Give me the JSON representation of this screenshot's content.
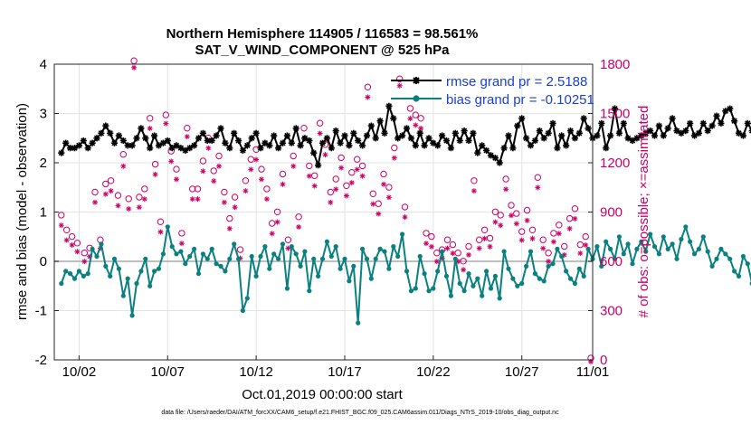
{
  "chart_data": {
    "type": "line",
    "title": "Northern Hemisphere 114905 / 116583 = 98.561%",
    "subtitle": "SAT_V_WIND_COMPONENT @ 525 hPa",
    "xlabel": "Oct.01,2019 00:00:00 start",
    "ylabel_left": "rmse and bias (model - observation)",
    "ylabel_right": "# of obs: o=possible; ×=assimilated",
    "footer": "data file: /Users/raeder/DAI/ATM_forcXX/CAM6_setup/f.e21.FHIST_BGC.f09_025.CAM6assim.011/Diags_NTrS_2019-10/obs_diag_output.nc",
    "xlim": [
      0.6,
      31.0
    ],
    "ylim_left": [
      -2,
      4
    ],
    "ylim_right": [
      0,
      1800
    ],
    "x_ticks": [
      {
        "x": 2,
        "label": "10/02"
      },
      {
        "x": 7,
        "label": "10/07"
      },
      {
        "x": 12,
        "label": "10/12"
      },
      {
        "x": 17,
        "label": "10/17"
      },
      {
        "x": 22,
        "label": "10/22"
      },
      {
        "x": 27,
        "label": "10/27"
      },
      {
        "x": 31,
        "label": "11/01"
      }
    ],
    "y_ticks_left": [
      "-2",
      "-1",
      "0",
      "1",
      "2",
      "3",
      "4"
    ],
    "y_ticks_right": [
      "0",
      "300",
      "600",
      "900",
      "1200",
      "1500",
      "1800"
    ],
    "grid": true,
    "zero_line": true,
    "legend_position": "top-right",
    "colors": {
      "rmse": "#000000",
      "bias": "#0b8080",
      "obs": "#cc0066",
      "zero": "#bfbfbf",
      "legend_text": "#1a3fd6"
    },
    "series": [
      {
        "name": "rmse grand pr = 2.5188",
        "type": "line",
        "marker": "star",
        "x_start": 1.0,
        "x_step": 0.25,
        "values": [
          2.2,
          2.4,
          2.3,
          2.3,
          2.35,
          2.45,
          2.3,
          2.4,
          2.5,
          2.6,
          2.75,
          2.6,
          2.4,
          2.55,
          2.45,
          2.35,
          2.35,
          2.5,
          2.7,
          2.5,
          2.3,
          2.55,
          2.35,
          2.4,
          2.45,
          2.3,
          2.35,
          2.3,
          2.25,
          2.3,
          2.35,
          2.5,
          2.6,
          2.45,
          2.45,
          2.55,
          2.7,
          2.4,
          2.3,
          2.6,
          2.45,
          2.25,
          2.35,
          2.5,
          2.6,
          2.3,
          2.4,
          2.35,
          2.55,
          2.3,
          2.4,
          2.55,
          2.4,
          2.7,
          2.35,
          2.5,
          2.45,
          2.2,
          1.95,
          2.4,
          2.5,
          2.3,
          2.65,
          2.4,
          2.55,
          2.35,
          2.6,
          2.45,
          2.35,
          2.55,
          2.75,
          2.5,
          2.85,
          2.6,
          3.15,
          2.9,
          2.5,
          2.55,
          2.7,
          2.5,
          2.35,
          2.6,
          2.35,
          2.5,
          2.4,
          2.35,
          2.55,
          2.45,
          2.3,
          2.6,
          2.45,
          2.65,
          2.45,
          2.6,
          2.2,
          2.35,
          2.25,
          2.15,
          2.1,
          2.0,
          2.3,
          2.55,
          2.3,
          2.75,
          2.9,
          2.5,
          2.35,
          2.45,
          2.65,
          2.5,
          2.6,
          2.8,
          2.3,
          2.55,
          2.35,
          2.65,
          2.5,
          2.6,
          2.9,
          2.7,
          2.5,
          2.55,
          2.8,
          2.3,
          2.55,
          3.1,
          2.6,
          2.8,
          2.5,
          2.45,
          2.5,
          2.55,
          2.6,
          2.65,
          2.55,
          2.75,
          2.55,
          2.7,
          2.9,
          2.65,
          2.6,
          2.65,
          2.8,
          2.55,
          2.6,
          2.8,
          2.65,
          2.75,
          2.95,
          2.8,
          3.05,
          3.1,
          2.85,
          2.6,
          2.55,
          2.8,
          2.65,
          2.75,
          2.5,
          2.65,
          2.6,
          2.75,
          2.6,
          2.55,
          2.65,
          2.4,
          2.7,
          2.6,
          2.55,
          2.7,
          2.6,
          2.5,
          2.6,
          2.65,
          2.6
        ]
      },
      {
        "name": "bias grand pr = -0.10251",
        "type": "line",
        "marker": "circle",
        "x_start": 1.0,
        "x_step": 0.25,
        "values": [
          -0.45,
          -0.2,
          -0.25,
          -0.35,
          -0.2,
          -0.3,
          -0.25,
          0.25,
          0.1,
          0.35,
          -0.1,
          -0.3,
          0.05,
          -0.15,
          -0.7,
          -0.35,
          -1.1,
          -0.45,
          -0.2,
          0.05,
          -0.5,
          -0.2,
          -0.15,
          0.15,
          0.7,
          0.3,
          0.15,
          0.2,
          -0.05,
          0.1,
          0.25,
          -0.25,
          0.15,
          0.05,
          0.25,
          -0.05,
          -0.1,
          -0.2,
          0.05,
          0.35,
          0.05,
          -1.0,
          -0.75,
          0.1,
          -0.3,
          0.1,
          0.3,
          -0.15,
          0.15,
          0.05,
          0.35,
          -0.55,
          0.3,
          0.15,
          -0.1,
          0.2,
          -0.6,
          0.05,
          -0.3,
          0.05,
          0.4,
          0.1,
          0.3,
          -0.15,
          0.05,
          -0.4,
          -0.1,
          -1.25,
          0.25,
          0.05,
          -0.35,
          0.05,
          0.25,
          0.2,
          -0.15,
          0.3,
          0.1,
          0.55,
          -0.2,
          -0.6,
          -0.55,
          0.1,
          -0.25,
          -0.6,
          -0.55,
          -0.2,
          0.2,
          -0.3,
          -0.7,
          0.05,
          -0.45,
          -0.6,
          -0.25,
          -0.5,
          -0.35,
          -0.7,
          -0.2,
          -0.55,
          -0.3,
          -0.75,
          0.2,
          -0.15,
          -0.35,
          -0.5,
          -0.45,
          -0.1,
          0.2,
          -0.25,
          -0.35,
          -0.4,
          -0.1,
          -0.05,
          0.25,
          0.1,
          -0.2,
          -0.35,
          -0.45,
          -0.15,
          -0.3,
          0.25,
          0.05,
          0.3,
          -0.1,
          0.4,
          0.25,
          0.05,
          0.5,
          0.15,
          0.35,
          -0.05,
          0.25,
          0.4,
          0.2,
          0.55,
          0.3,
          0.15,
          0.5,
          0.25,
          0.35,
          0.05,
          0.45,
          0.7,
          0.4,
          0.15,
          0.25,
          0.5,
          0.2,
          -0.1,
          0.05,
          0.25,
          0.15,
          0.05,
          -0.2,
          -0.3,
          0.1,
          -0.05,
          -0.45,
          0.05,
          0.3,
          -0.35,
          0.45,
          0.05,
          -0.15,
          0.25,
          0.45,
          0.2,
          0.05,
          0.4,
          0.25,
          0.05,
          0.3,
          0.1,
          0.5,
          0.35,
          0.1
        ]
      },
      {
        "name": "# of obs possible",
        "type": "scatter",
        "marker": "circle-open",
        "points": [
          [
            1.0,
            870
          ],
          [
            1.3,
            780
          ],
          [
            1.6,
            740
          ],
          [
            1.9,
            700
          ],
          [
            2.3,
            640
          ],
          [
            2.6,
            670
          ],
          [
            2.9,
            1010
          ],
          [
            3.2,
            720
          ],
          [
            3.5,
            1060
          ],
          [
            3.8,
            1080
          ],
          [
            4.2,
            990
          ],
          [
            4.5,
            1240
          ],
          [
            4.8,
            970
          ],
          [
            5.1,
            1810
          ],
          [
            5.4,
            980
          ],
          [
            5.7,
            1030
          ],
          [
            6.0,
            1460
          ],
          [
            6.3,
            1180
          ],
          [
            6.6,
            830
          ],
          [
            6.9,
            1480
          ],
          [
            7.2,
            1260
          ],
          [
            7.5,
            1150
          ],
          [
            7.8,
            760
          ],
          [
            8.1,
            1400
          ],
          [
            8.4,
            1030
          ],
          [
            8.7,
            1030
          ],
          [
            9.0,
            1200
          ],
          [
            9.3,
            1340
          ],
          [
            9.6,
            1140
          ],
          [
            9.9,
            1230
          ],
          [
            10.2,
            1010
          ],
          [
            10.5,
            850
          ],
          [
            10.8,
            980
          ],
          [
            11.1,
            660
          ],
          [
            11.4,
            1080
          ],
          [
            11.7,
            1210
          ],
          [
            12.0,
            1270
          ],
          [
            12.3,
            1150
          ],
          [
            12.6,
            1030
          ],
          [
            12.9,
            820
          ],
          [
            13.2,
            890
          ],
          [
            13.5,
            1120
          ],
          [
            13.8,
            720
          ],
          [
            14.1,
            1230
          ],
          [
            14.4,
            860
          ],
          [
            14.7,
            1400
          ],
          [
            15.0,
            1170
          ],
          [
            15.3,
            1110
          ],
          [
            15.6,
            1430
          ],
          [
            15.9,
            1300
          ],
          [
            16.2,
            1010
          ],
          [
            16.5,
            1090
          ],
          [
            16.8,
            1220
          ],
          [
            17.1,
            1050
          ],
          [
            17.4,
            1130
          ],
          [
            17.7,
            1210
          ],
          [
            18.0,
            1170
          ],
          [
            18.3,
            1650
          ],
          [
            18.6,
            1000
          ],
          [
            18.9,
            940
          ],
          [
            19.2,
            1120
          ],
          [
            19.5,
            1040
          ],
          [
            19.8,
            1280
          ],
          [
            20.1,
            1700
          ],
          [
            20.4,
            920
          ],
          [
            20.7,
            1520
          ],
          [
            21.0,
            1480
          ],
          [
            21.3,
            1460
          ],
          [
            21.6,
            760
          ],
          [
            21.9,
            740
          ],
          [
            22.2,
            640
          ],
          [
            22.5,
            660
          ],
          [
            22.8,
            720
          ],
          [
            23.1,
            690
          ],
          [
            23.4,
            640
          ],
          [
            23.7,
            590
          ],
          [
            24.0,
            680
          ],
          [
            24.3,
            1080
          ],
          [
            24.6,
            720
          ],
          [
            24.9,
            780
          ],
          [
            25.2,
            730
          ],
          [
            25.5,
            890
          ],
          [
            25.8,
            870
          ],
          [
            26.1,
            1090
          ],
          [
            26.4,
            930
          ],
          [
            26.7,
            880
          ],
          [
            27.0,
            770
          ],
          [
            27.3,
            900
          ],
          [
            27.6,
            780
          ],
          [
            27.9,
            1100
          ],
          [
            28.2,
            720
          ],
          [
            28.5,
            640
          ],
          [
            28.8,
            760
          ],
          [
            29.1,
            810
          ],
          [
            29.4,
            680
          ],
          [
            29.7,
            850
          ],
          [
            30.0,
            910
          ],
          [
            30.3,
            690
          ],
          [
            30.6,
            740
          ],
          [
            30.9,
            0
          ]
        ]
      },
      {
        "name": "# of obs assimilated",
        "type": "scatter",
        "marker": "star",
        "points": [
          [
            1.0,
            830
          ],
          [
            1.3,
            740
          ],
          [
            1.6,
            710
          ],
          [
            1.9,
            670
          ],
          [
            2.3,
            610
          ],
          [
            2.6,
            640
          ],
          [
            2.9,
            970
          ],
          [
            3.2,
            690
          ],
          [
            3.5,
            1020
          ],
          [
            3.8,
            1040
          ],
          [
            4.2,
            950
          ],
          [
            4.5,
            1190
          ],
          [
            4.8,
            930
          ],
          [
            5.1,
            1790
          ],
          [
            5.4,
            940
          ],
          [
            5.7,
            990
          ],
          [
            6.0,
            1420
          ],
          [
            6.3,
            1140
          ],
          [
            6.6,
            790
          ],
          [
            6.9,
            1450
          ],
          [
            7.2,
            1220
          ],
          [
            7.5,
            1110
          ],
          [
            7.8,
            720
          ],
          [
            8.1,
            1370
          ],
          [
            8.4,
            990
          ],
          [
            8.7,
            990
          ],
          [
            9.0,
            1160
          ],
          [
            9.3,
            1300
          ],
          [
            9.6,
            1100
          ],
          [
            9.9,
            1190
          ],
          [
            10.2,
            970
          ],
          [
            10.5,
            810
          ],
          [
            10.8,
            940
          ],
          [
            11.1,
            630
          ],
          [
            11.4,
            1040
          ],
          [
            11.7,
            1170
          ],
          [
            12.0,
            1230
          ],
          [
            12.3,
            1110
          ],
          [
            12.6,
            990
          ],
          [
            12.9,
            780
          ],
          [
            13.2,
            850
          ],
          [
            13.5,
            1080
          ],
          [
            13.8,
            690
          ],
          [
            14.1,
            1190
          ],
          [
            14.4,
            820
          ],
          [
            14.7,
            1360
          ],
          [
            15.0,
            1130
          ],
          [
            15.3,
            1070
          ],
          [
            15.6,
            1390
          ],
          [
            15.9,
            1260
          ],
          [
            16.2,
            970
          ],
          [
            16.5,
            1050
          ],
          [
            16.8,
            1180
          ],
          [
            17.1,
            1010
          ],
          [
            17.4,
            1090
          ],
          [
            17.7,
            1170
          ],
          [
            18.0,
            1130
          ],
          [
            18.3,
            1610
          ],
          [
            18.6,
            960
          ],
          [
            18.9,
            900
          ],
          [
            19.2,
            1080
          ],
          [
            19.5,
            1000
          ],
          [
            19.8,
            1240
          ],
          [
            20.1,
            1680
          ],
          [
            20.4,
            880
          ],
          [
            20.7,
            1480
          ],
          [
            21.0,
            1440
          ],
          [
            21.3,
            1420
          ],
          [
            21.6,
            720
          ],
          [
            21.9,
            700
          ],
          [
            22.2,
            610
          ],
          [
            22.5,
            630
          ],
          [
            22.8,
            690
          ],
          [
            23.1,
            660
          ],
          [
            23.4,
            610
          ],
          [
            23.7,
            560
          ],
          [
            24.0,
            650
          ],
          [
            24.3,
            1040
          ],
          [
            24.6,
            690
          ],
          [
            24.9,
            750
          ],
          [
            25.2,
            700
          ],
          [
            25.5,
            850
          ],
          [
            25.8,
            830
          ],
          [
            26.1,
            1050
          ],
          [
            26.4,
            890
          ],
          [
            26.7,
            840
          ],
          [
            27.0,
            740
          ],
          [
            27.3,
            860
          ],
          [
            27.6,
            750
          ],
          [
            27.9,
            1060
          ],
          [
            28.2,
            690
          ],
          [
            28.5,
            610
          ],
          [
            28.8,
            730
          ],
          [
            29.1,
            780
          ],
          [
            29.4,
            650
          ],
          [
            29.7,
            810
          ],
          [
            30.0,
            870
          ],
          [
            30.3,
            660
          ],
          [
            30.6,
            710
          ],
          [
            30.9,
            0
          ]
        ]
      }
    ]
  }
}
